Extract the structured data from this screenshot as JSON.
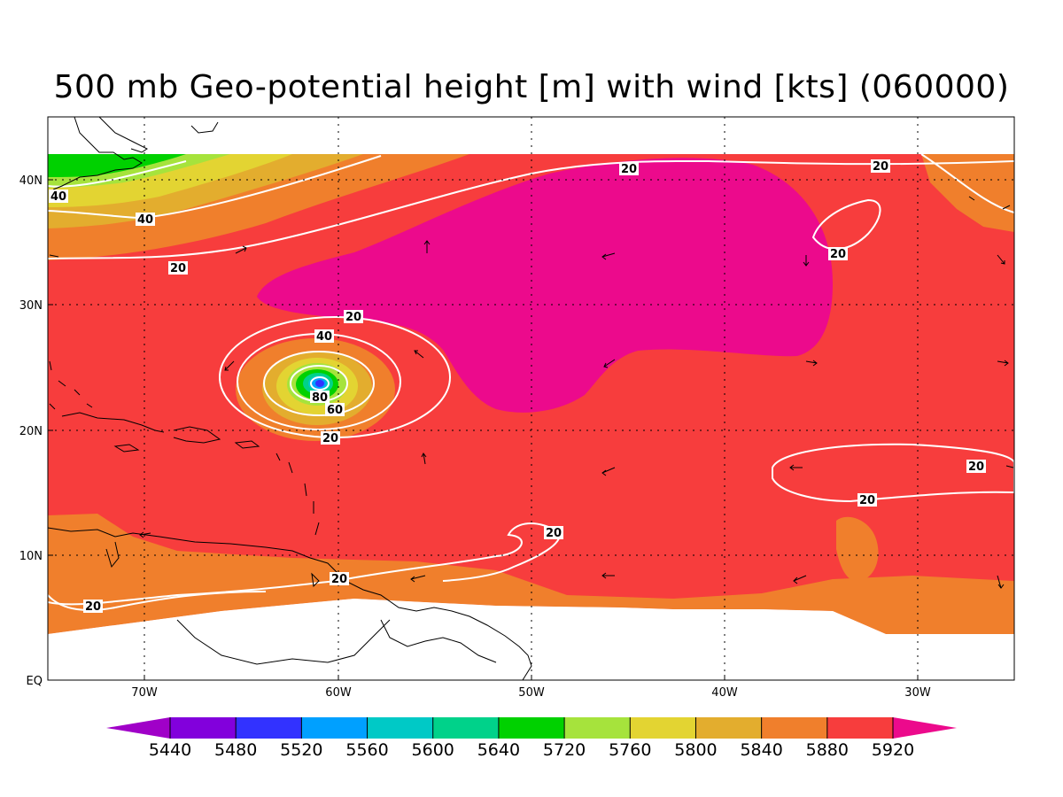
{
  "title": "500 mb Geo-potential height [m] with wind [kts] (060000)",
  "colors": {
    "c5920": "#ec0a8c",
    "c5880": "#f73d3d",
    "c5840": "#f07f2c",
    "c5800": "#e3ad2e",
    "c5760": "#e3d432",
    "c5720": "#a6e33c",
    "c5640": "#00d100",
    "c5600": "#00d28a",
    "c5560": "#00c9c6",
    "c5520": "#00a0ff",
    "c5480": "#3232ff",
    "c5440": "#8200dc",
    "below": "#a000c8",
    "contour": "#ffffff",
    "coast": "#000000"
  },
  "axes": {
    "lon_ticks": [
      "70W",
      "60W",
      "50W",
      "40W",
      "30W"
    ],
    "lat_ticks": [
      "40N",
      "30N",
      "20N",
      "10N",
      "EQ"
    ]
  },
  "colorbar": {
    "labels": [
      "5440",
      "5480",
      "5520",
      "5560",
      "5600",
      "5640",
      "5720",
      "5760",
      "5800",
      "5840",
      "5880",
      "5920"
    ],
    "colors": [
      "#a000c8",
      "#8200dc",
      "#3232ff",
      "#00a0ff",
      "#00c9c6",
      "#00d28a",
      "#00d100",
      "#a6e33c",
      "#e3d432",
      "#e3ad2e",
      "#f07f2c",
      "#f73d3d",
      "#ec0a8c"
    ]
  },
  "contour_labels": {
    "l1": "20",
    "l2": "20",
    "l3": "20",
    "l4": "40",
    "l5": "40",
    "l6": "20",
    "l7": "20",
    "l8": "40",
    "l9": "80",
    "l10": "60",
    "l11": "20",
    "l12": "20",
    "l13": "20",
    "l14": "20",
    "l15": "20",
    "l16": "20",
    "l17": "20"
  }
}
